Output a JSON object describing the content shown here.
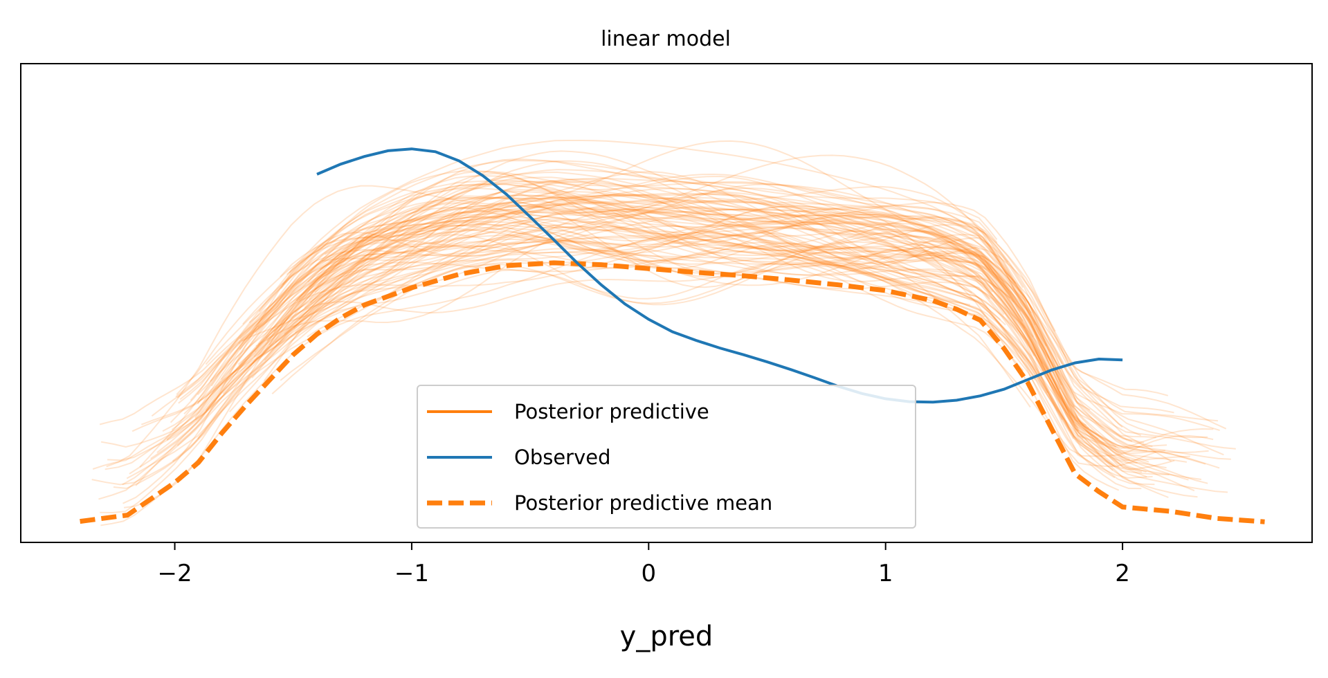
{
  "chart_data": {
    "type": "line",
    "title": "linear model",
    "xlabel": "y_pred",
    "ylabel": "",
    "xlim": [
      -2.65,
      2.8
    ],
    "ylim": [
      0,
      1
    ],
    "yticks_visible": false,
    "xticks": [
      -2,
      -1,
      0,
      1,
      2
    ],
    "xtick_labels": [
      "−2",
      "−1",
      "0",
      "1",
      "2"
    ],
    "legend_placement": "lower center",
    "legend": [
      {
        "label": "Posterior predictive",
        "style": "solid",
        "color": "#ff7f0e"
      },
      {
        "label": "Observed",
        "style": "solid",
        "color": "#1f77b4"
      },
      {
        "label": "Posterior predictive mean",
        "style": "dashed",
        "color": "#ff7f0e"
      }
    ],
    "series": [
      {
        "name": "Observed",
        "color": "#1f77b4",
        "x": [
          -1.4,
          -1.3,
          -1.2,
          -1.1,
          -1.0,
          -0.9,
          -0.8,
          -0.7,
          -0.6,
          -0.5,
          -0.4,
          -0.3,
          -0.2,
          -0.1,
          0.0,
          0.1,
          0.2,
          0.3,
          0.4,
          0.5,
          0.6,
          0.7,
          0.8,
          0.9,
          1.0,
          1.1,
          1.2,
          1.3,
          1.4,
          1.5,
          1.6,
          1.7,
          1.8,
          1.9,
          2.0
        ],
        "y": [
          0.769,
          0.79,
          0.806,
          0.818,
          0.822,
          0.816,
          0.797,
          0.766,
          0.727,
          0.68,
          0.632,
          0.583,
          0.538,
          0.498,
          0.466,
          0.44,
          0.422,
          0.406,
          0.392,
          0.377,
          0.361,
          0.344,
          0.326,
          0.311,
          0.3,
          0.294,
          0.293,
          0.297,
          0.306,
          0.32,
          0.34,
          0.36,
          0.375,
          0.383,
          0.381
        ]
      },
      {
        "name": "Posterior predictive mean",
        "color": "#ff7f0e",
        "x": [
          -2.4,
          -2.2,
          -2.0,
          -1.9,
          -1.8,
          -1.7,
          -1.6,
          -1.5,
          -1.4,
          -1.3,
          -1.2,
          -1.0,
          -0.8,
          -0.6,
          -0.4,
          -0.2,
          0.0,
          0.2,
          0.4,
          0.6,
          0.8,
          1.0,
          1.2,
          1.3,
          1.4,
          1.5,
          1.6,
          1.7,
          1.8,
          1.9,
          2.0,
          2.2,
          2.4,
          2.6
        ],
        "y": [
          0.044,
          0.057,
          0.125,
          0.167,
          0.229,
          0.286,
          0.339,
          0.392,
          0.435,
          0.469,
          0.496,
          0.532,
          0.56,
          0.578,
          0.584,
          0.58,
          0.572,
          0.564,
          0.557,
          0.548,
          0.538,
          0.526,
          0.505,
          0.487,
          0.464,
          0.405,
          0.334,
          0.238,
          0.143,
          0.106,
          0.074,
          0.065,
          0.05,
          0.043
        ]
      }
    ],
    "posterior_predictive_draws": {
      "name": "Posterior predictive",
      "color": "#ff7f0e",
      "count": 100,
      "opacity": 0.2
    }
  }
}
